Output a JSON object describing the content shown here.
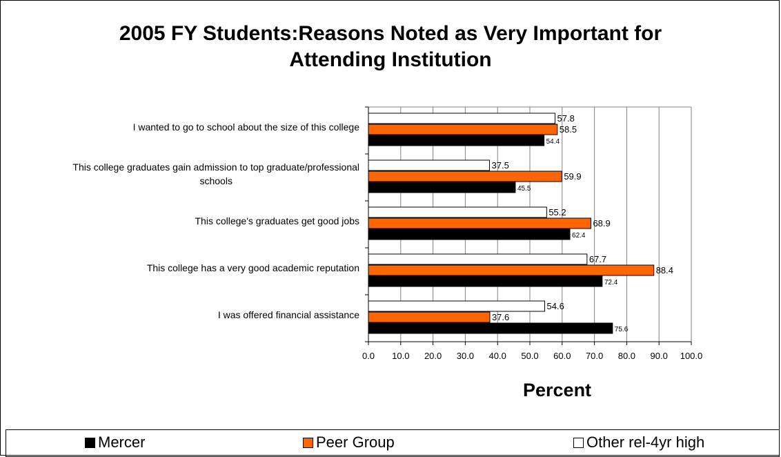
{
  "chart_data": {
    "type": "bar",
    "orientation": "horizontal",
    "title": "2005 FY Students:Reasons Noted as Very Important for Attending Institution",
    "title_lines": [
      "2005 FY Students:Reasons Noted as Very Important for",
      "Attending Institution"
    ],
    "xlabel": "Percent",
    "xlim": [
      0,
      100
    ],
    "x_ticks": [
      "0.0",
      "10.0",
      "20.0",
      "30.0",
      "40.0",
      "50.0",
      "60.0",
      "70.0",
      "80.0",
      "90.0",
      "100.0"
    ],
    "grid": true,
    "legend_position": "bottom",
    "categories": [
      [
        "I wanted to go to school about the size of this college"
      ],
      [
        "This college graduates gain admission to top graduate/professional",
        "schools"
      ],
      [
        "This college's graduates get good jobs"
      ],
      [
        "This college has a very good academic  reputation"
      ],
      [
        "I was offered financial assistance"
      ]
    ],
    "series": [
      {
        "name": "Mercer",
        "color": "#000000",
        "values": [
          54.4,
          45.5,
          62.4,
          72.4,
          75.6
        ],
        "labels": [
          "54.4",
          "45.5",
          "62.4",
          "72.4",
          "75.6"
        ]
      },
      {
        "name": "Peer Group",
        "color": "#FF6600",
        "values": [
          58.5,
          59.9,
          68.9,
          88.4,
          37.6
        ],
        "labels": [
          "58.5",
          "59.9",
          "68.9",
          "88.4",
          "37.6"
        ]
      },
      {
        "name": "Other rel-4yr high",
        "color": "#FFFFFF",
        "values": [
          57.8,
          37.5,
          55.2,
          67.7,
          54.6
        ],
        "labels": [
          "57.8",
          "37.5",
          "55.2",
          "67.7",
          "54.6"
        ]
      }
    ]
  }
}
